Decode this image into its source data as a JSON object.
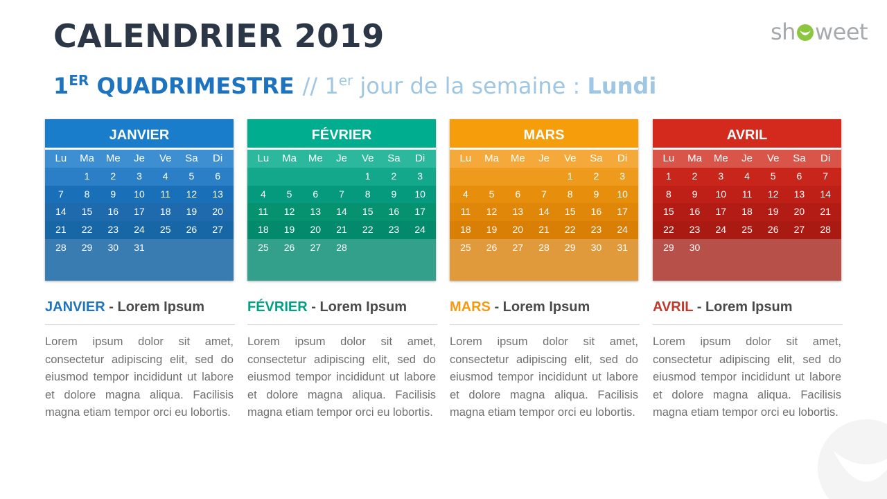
{
  "header": {
    "title": "CALENDRIER 2019",
    "quad_num": "1",
    "quad_sup": "ER",
    "quad_word": "QUADRIMESTRE",
    "sep": "//",
    "first_num": "1",
    "first_sup": "er",
    "first_text": "jour de la semaine :",
    "first_day": "Lundi"
  },
  "logo": {
    "left": "sh",
    "right": "weet",
    "icon": "leaf-icon"
  },
  "day_names": [
    "Lu",
    "Ma",
    "Me",
    "Je",
    "Ve",
    "Sa",
    "Di"
  ],
  "months": [
    {
      "name": "JANVIER",
      "info_title": "JANVIER",
      "info_sep": " - ",
      "info_sub": "Lorem Ipsum",
      "text": "Lorem ipsum dolor sit amet, consectetur adipiscing elit, sed do eiusmod tempor incididunt ut labore et dolore magna aliqua. Facilisis magna etiam tempor orci eu lobortis.",
      "colors": {
        "head": "#1a7dcb",
        "title": "#1e73be",
        "rows": [
          "#3d8fd1",
          "#2a7fc6",
          "#1a6fb9",
          "#1f6aad",
          "#1767a7",
          "#397cb1"
        ]
      },
      "weeks": [
        [
          "",
          "1",
          "2",
          "3",
          "4",
          "5",
          "6"
        ],
        [
          "7",
          "8",
          "9",
          "10",
          "11",
          "12",
          "13"
        ],
        [
          "14",
          "15",
          "16",
          "17",
          "18",
          "19",
          "20"
        ],
        [
          "21",
          "22",
          "23",
          "24",
          "25",
          "26",
          "27"
        ],
        [
          "28",
          "29",
          "30",
          "31",
          "",
          "",
          ""
        ]
      ]
    },
    {
      "name": "FÉVRIER",
      "info_title": "FÉVRIER",
      "info_sep": " - ",
      "info_sub": "Lorem Ipsum",
      "text": "Lorem ipsum dolor sit amet, consectetur adipiscing elit, sed do eiusmod tempor incididunt ut labore et dolore magna aliqua. Facilisis magna etiam tempor orci eu lobortis.",
      "colors": {
        "head": "#00ad8e",
        "title": "#00a085",
        "rows": [
          "#2cb89c",
          "#13a88b",
          "#05997d",
          "#07926f",
          "#038a6c",
          "#33a08c"
        ]
      },
      "weeks": [
        [
          "",
          "",
          "",
          "",
          "1",
          "2",
          "3"
        ],
        [
          "4",
          "5",
          "6",
          "7",
          "8",
          "9",
          "10"
        ],
        [
          "11",
          "12",
          "13",
          "14",
          "15",
          "16",
          "17"
        ],
        [
          "18",
          "19",
          "20",
          "21",
          "22",
          "23",
          "24"
        ],
        [
          "25",
          "26",
          "27",
          "28",
          "",
          "",
          ""
        ]
      ]
    },
    {
      "name": "MARS",
      "info_title": "MARS",
      "info_sep": " - ",
      "info_sub": "Lorem Ipsum",
      "text": "Lorem ipsum dolor sit amet, consectetur adipiscing elit, sed do eiusmod tempor incididunt ut labore et dolore magna aliqua. Facilisis magna etiam tempor orci eu lobortis.",
      "colors": {
        "head": "#f59d0b",
        "title": "#f39a12",
        "rows": [
          "#f5a93a",
          "#ee9b1d",
          "#e78e0d",
          "#e08709",
          "#d97f06",
          "#e09a3c"
        ]
      },
      "weeks": [
        [
          "",
          "",
          "",
          "",
          "1",
          "2",
          "3"
        ],
        [
          "4",
          "5",
          "6",
          "7",
          "8",
          "9",
          "10"
        ],
        [
          "11",
          "12",
          "13",
          "14",
          "15",
          "16",
          "17"
        ],
        [
          "18",
          "19",
          "20",
          "21",
          "22",
          "23",
          "24"
        ],
        [
          "25",
          "26",
          "27",
          "28",
          "29",
          "30",
          "31"
        ]
      ]
    },
    {
      "name": "AVRIL",
      "info_title": "AVRIL",
      "info_sep": " - ",
      "info_sub": "Lorem Ipsum",
      "text": "Lorem ipsum dolor sit amet, consectetur adipiscing elit, sed do eiusmod tempor incididunt ut labore et dolore magna aliqua. Facilisis magna etiam tempor orci eu lobortis.",
      "colors": {
        "head": "#d42a1e",
        "title": "#c0392b",
        "rows": [
          "#d9554a",
          "#c9261b",
          "#be1f16",
          "#b21c14",
          "#a91a12",
          "#b8504a"
        ]
      },
      "weeks": [
        [
          "1",
          "2",
          "3",
          "4",
          "5",
          "6",
          "7"
        ],
        [
          "8",
          "9",
          "10",
          "11",
          "12",
          "13",
          "14"
        ],
        [
          "15",
          "16",
          "17",
          "18",
          "19",
          "20",
          "21"
        ],
        [
          "22",
          "23",
          "24",
          "25",
          "26",
          "27",
          "28"
        ],
        [
          "29",
          "30",
          "",
          "",
          "",
          "",
          ""
        ]
      ]
    }
  ]
}
